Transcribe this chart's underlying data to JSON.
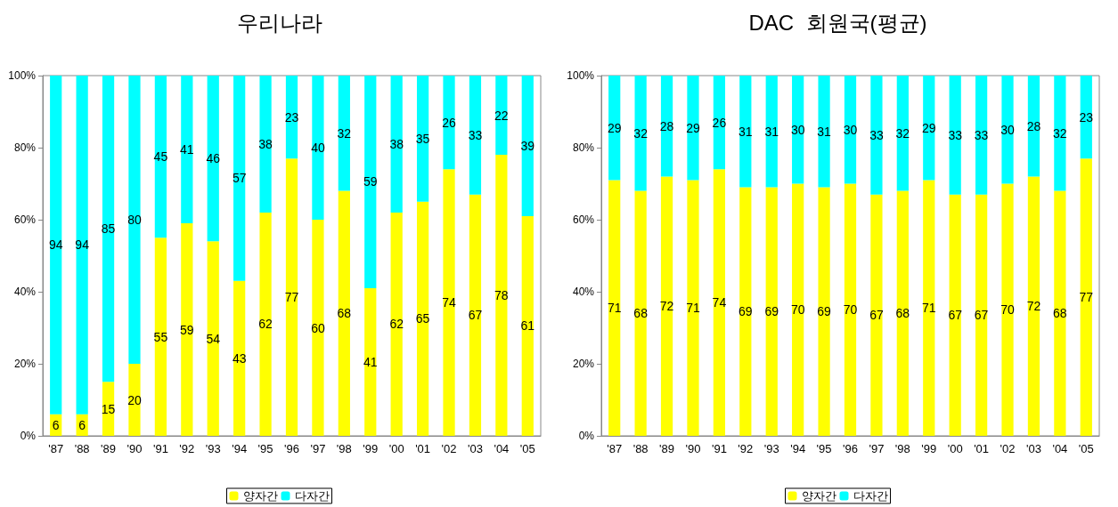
{
  "chart_data": [
    {
      "type": "bar",
      "title": "우리나라",
      "stacked": true,
      "data_labels": true,
      "grid": false,
      "legend": "bottom",
      "categories": [
        "'87",
        "'88",
        "'89",
        "'90",
        "'91",
        "'92",
        "'93",
        "'94",
        "'95",
        "'96",
        "'97",
        "'98",
        "'99",
        "'00",
        "'01",
        "'02",
        "'03",
        "'04",
        "'05"
      ],
      "ylim": [
        0,
        100
      ],
      "yticks": [
        {
          "value": 0,
          "label": "0%"
        },
        {
          "value": 20,
          "label": "20%"
        },
        {
          "value": 40,
          "label": "40%"
        },
        {
          "value": 60,
          "label": "60%"
        },
        {
          "value": 80,
          "label": "80%"
        },
        {
          "value": 100,
          "label": "100%"
        }
      ],
      "series": [
        {
          "name": "양자간",
          "color": "#ffff00",
          "values": [
            6,
            6,
            15,
            20,
            55,
            59,
            54,
            43,
            62,
            77,
            60,
            68,
            41,
            62,
            65,
            74,
            67,
            78,
            61
          ]
        },
        {
          "name": "다자간",
          "color": "#00ffff",
          "values": [
            94,
            94,
            85,
            80,
            45,
            41,
            46,
            57,
            38,
            23,
            40,
            32,
            59,
            38,
            35,
            26,
            33,
            22,
            39
          ]
        }
      ]
    },
    {
      "type": "bar",
      "title": "DAC  회원국(평균)",
      "stacked": true,
      "data_labels": true,
      "grid": false,
      "legend": "bottom",
      "categories": [
        "'87",
        "'88",
        "'89",
        "'90",
        "'91",
        "'92",
        "'93",
        "'94",
        "'95",
        "'96",
        "'97",
        "'98",
        "'99",
        "'00",
        "'01",
        "'02",
        "'03",
        "'04",
        "'05"
      ],
      "ylim": [
        0,
        100
      ],
      "yticks": [
        {
          "value": 0,
          "label": "0%"
        },
        {
          "value": 20,
          "label": "20%"
        },
        {
          "value": 40,
          "label": "40%"
        },
        {
          "value": 60,
          "label": "60%"
        },
        {
          "value": 80,
          "label": "80%"
        },
        {
          "value": 100,
          "label": "100%"
        }
      ],
      "series": [
        {
          "name": "양자간",
          "color": "#ffff00",
          "values": [
            71,
            68,
            72,
            71,
            74,
            69,
            69,
            70,
            69,
            70,
            67,
            68,
            71,
            67,
            67,
            70,
            72,
            68,
            77
          ]
        },
        {
          "name": "다자간",
          "color": "#00ffff",
          "values": [
            29,
            32,
            28,
            29,
            26,
            31,
            31,
            30,
            31,
            30,
            33,
            32,
            29,
            33,
            33,
            30,
            28,
            32,
            23
          ]
        }
      ]
    }
  ]
}
